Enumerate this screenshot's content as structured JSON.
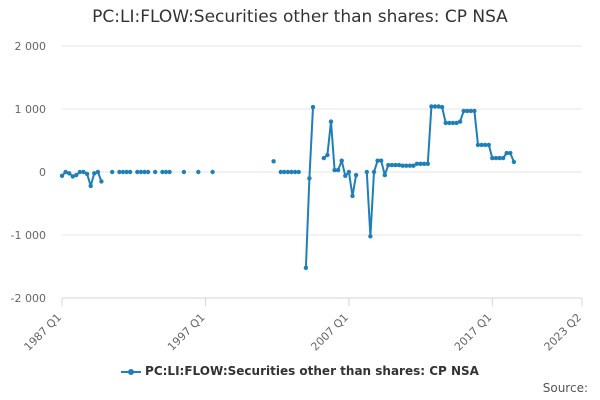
{
  "chart_data": {
    "type": "line",
    "title": "PC:LI:FLOW:Securities other than shares: CP NSA",
    "xlabel": "",
    "ylabel": "",
    "x_range": [
      "1987 Q1",
      "2023 Q2"
    ],
    "ylim": [
      -2000,
      2000
    ],
    "y_ticks": [
      {
        "value": 2000,
        "label": "2 000"
      },
      {
        "value": 1000,
        "label": "1 000"
      },
      {
        "value": 0,
        "label": "0"
      },
      {
        "value": -1000,
        "label": "-1 000"
      },
      {
        "value": -2000,
        "label": "-2 000"
      }
    ],
    "x_ticks": [
      "1987 Q1",
      "1997 Q1",
      "2007 Q1",
      "2017 Q1",
      "2023 Q2"
    ],
    "grid": "horizontal",
    "legend_position": "bottom",
    "color": "#1f7fb8",
    "series": [
      {
        "name": "PC:LI:FLOW:Securities other than shares: CP NSA",
        "points": [
          [
            "1987 Q1",
            -60
          ],
          [
            "1987 Q2",
            0
          ],
          [
            "1987 Q3",
            -20
          ],
          [
            "1987 Q4",
            -70
          ],
          [
            "1988 Q1",
            -50
          ],
          [
            "1988 Q2",
            0
          ],
          [
            "1988 Q3",
            0
          ],
          [
            "1988 Q4",
            -30
          ],
          [
            "1989 Q1",
            -220
          ],
          [
            "1989 Q2",
            -20
          ],
          [
            "1989 Q3",
            0
          ],
          [
            "1989 Q4",
            -150
          ],
          null,
          null,
          [
            "1990 Q3",
            0
          ],
          null,
          [
            "1991 Q1",
            0
          ],
          [
            "1991 Q2",
            0
          ],
          [
            "1991 Q3",
            0
          ],
          [
            "1991 Q4",
            0
          ],
          null,
          [
            "1992 Q2",
            0
          ],
          [
            "1992 Q3",
            0
          ],
          [
            "1992 Q4",
            0
          ],
          [
            "1993 Q1",
            0
          ],
          null,
          [
            "1993 Q3",
            0
          ],
          null,
          [
            "1994 Q1",
            0
          ],
          [
            "1994 Q2",
            0
          ],
          [
            "1994 Q3",
            0
          ],
          null,
          null,
          [
            "1995 Q3",
            0
          ],
          null,
          null,
          [
            "1996 Q3",
            0
          ],
          null,
          null,
          [
            "1997 Q3",
            0
          ],
          null,
          null,
          null,
          null,
          null,
          null,
          null,
          null,
          null,
          null,
          null,
          null,
          null,
          null,
          null,
          null,
          null,
          null,
          null,
          null,
          null,
          null,
          null,
          null,
          null,
          [
            "2001 Q4",
            170
          ],
          null,
          [
            "2002 Q2",
            0
          ],
          [
            "2002 Q3",
            0
          ],
          [
            "2002 Q4",
            0
          ],
          [
            "2003 Q1",
            0
          ],
          [
            "2003 Q2",
            0
          ],
          [
            "2003 Q3",
            0
          ],
          null,
          [
            "2004 Q1",
            -1520
          ],
          [
            "2004 Q2",
            -100
          ],
          [
            "2004 Q3",
            1030
          ],
          null,
          null,
          null,
          null,
          null,
          null,
          null,
          null,
          null,
          null,
          null,
          null,
          null,
          null,
          null,
          [
            "2005 Q2",
            220
          ],
          [
            "2005 Q3",
            270
          ],
          [
            "2005 Q4",
            800
          ],
          [
            "2006 Q1",
            30
          ],
          [
            "2006 Q2",
            30
          ],
          [
            "2006 Q3",
            180
          ],
          [
            "2006 Q4",
            -60
          ],
          [
            "2007 Q1",
            0
          ],
          [
            "2007 Q2",
            -380
          ],
          [
            "2007 Q3",
            -50
          ],
          null,
          null,
          null,
          null,
          null,
          null,
          [
            "2008 Q2",
            0
          ],
          [
            "2008 Q3",
            -1020
          ],
          [
            "2008 Q4",
            0
          ],
          [
            "2009 Q1",
            180
          ],
          [
            "2009 Q2",
            180
          ],
          [
            "2009 Q3",
            -50
          ],
          [
            "2009 Q4",
            110
          ],
          [
            "2010 Q1",
            110
          ],
          [
            "2010 Q2",
            110
          ],
          [
            "2010 Q3",
            110
          ],
          [
            "2010 Q4",
            100
          ],
          [
            "2011 Q1",
            100
          ],
          [
            "2011 Q2",
            100
          ],
          [
            "2011 Q3",
            100
          ],
          [
            "2011 Q4",
            130
          ],
          [
            "2012 Q1",
            130
          ],
          [
            "2012 Q2",
            130
          ],
          [
            "2012 Q3",
            130
          ],
          [
            "2012 Q4",
            1040
          ],
          [
            "2013 Q1",
            1040
          ],
          [
            "2013 Q2",
            1040
          ],
          [
            "2013 Q3",
            1030
          ],
          [
            "2013 Q4",
            780
          ],
          [
            "2014 Q1",
            780
          ],
          [
            "2014 Q2",
            780
          ],
          [
            "2014 Q3",
            780
          ],
          [
            "2014 Q4",
            800
          ],
          [
            "2015 Q1",
            970
          ],
          [
            "2015 Q2",
            970
          ],
          [
            "2015 Q3",
            970
          ],
          [
            "2015 Q4",
            970
          ],
          [
            "2016 Q1",
            430
          ],
          [
            "2016 Q2",
            430
          ],
          [
            "2016 Q3",
            430
          ],
          [
            "2016 Q4",
            430
          ],
          [
            "2017 Q1",
            220
          ],
          [
            "2017 Q2",
            220
          ],
          [
            "2017 Q3",
            220
          ],
          [
            "2017 Q4",
            220
          ],
          [
            "2018 Q1",
            300
          ],
          [
            "2018 Q2",
            300
          ],
          [
            "2018 Q3",
            160
          ]
        ]
      }
    ]
  },
  "legend": {
    "label": "PC:LI:FLOW:Securities other than shares: CP NSA"
  },
  "credits": {
    "text": "Source:"
  }
}
